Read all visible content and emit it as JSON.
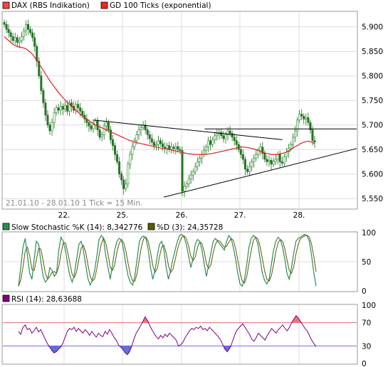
{
  "chart_data": [
    {
      "type": "candlestick",
      "legend": [
        {
          "name": "DAX (RBS Indikation)",
          "color": "#ff4040"
        },
        {
          "name": "GD 100 Ticks (exponential)",
          "color": "#ff2020"
        }
      ],
      "note": "21.01.10 - 28.01.10   1 Tick = 15 Min.",
      "x_tick_labels": [
        "22.",
        "25.",
        "26.",
        "27.",
        "28."
      ],
      "y_tick_labels": [
        "5.900",
        "5.850",
        "5.800",
        "5.750",
        "5.700",
        "5.650",
        "5.600",
        "5.550"
      ],
      "ylim": [
        5530,
        5930
      ],
      "grid": true,
      "series": {
        "price_close": [
          5905,
          5895,
          5888,
          5880,
          5872,
          5878,
          5868,
          5872,
          5880,
          5892,
          5905,
          5895,
          5888,
          5878,
          5860,
          5830,
          5800,
          5770,
          5745,
          5720,
          5700,
          5688,
          5705,
          5725,
          5735,
          5730,
          5738,
          5732,
          5740,
          5728,
          5745,
          5738,
          5730,
          5742,
          5735,
          5728,
          5720,
          5712,
          5705,
          5698,
          5692,
          5700,
          5708,
          5690,
          5675,
          5680,
          5698,
          5705,
          5690,
          5670,
          5658,
          5640,
          5625,
          5600,
          5588,
          5570,
          5580,
          5620,
          5640,
          5655,
          5668,
          5680,
          5690,
          5695,
          5700,
          5690,
          5680,
          5672,
          5665,
          5658,
          5660,
          5668,
          5662,
          5655,
          5652,
          5658,
          5650,
          5655,
          5652,
          5656,
          5650,
          5648,
          5565,
          5575,
          5580,
          5590,
          5598,
          5605,
          5615,
          5625,
          5632,
          5640,
          5648,
          5655,
          5668,
          5660,
          5670,
          5678,
          5682,
          5685,
          5678,
          5672,
          5680,
          5688,
          5683,
          5675,
          5668,
          5660,
          5650,
          5640,
          5630,
          5610,
          5605,
          5615,
          5625,
          5632,
          5640,
          5648,
          5655,
          5642,
          5630,
          5625,
          5628,
          5620,
          5626,
          5630,
          5640,
          5625,
          5622,
          5635,
          5645,
          5652,
          5660,
          5675,
          5688,
          5710,
          5722,
          5718,
          5712,
          5715,
          5705,
          5690,
          5668,
          5665
        ],
        "gd100": [
          5880,
          5876,
          5872,
          5868,
          5864,
          5862,
          5860,
          5859,
          5858,
          5857,
          5855,
          5852,
          5848,
          5844,
          5838,
          5832,
          5825,
          5818,
          5811,
          5804,
          5797,
          5790,
          5784,
          5778,
          5772,
          5766,
          5761,
          5756,
          5751,
          5746,
          5742,
          5738,
          5734,
          5730,
          5726,
          5722,
          5718,
          5715,
          5712,
          5709,
          5706,
          5703,
          5700,
          5698,
          5696,
          5694,
          5692,
          5690,
          5688,
          5686,
          5684,
          5682,
          5680,
          5678,
          5676,
          5674,
          5672,
          5670,
          5668,
          5667,
          5665,
          5664,
          5663,
          5662,
          5661,
          5660,
          5659,
          5658,
          5657,
          5656,
          5655,
          5654,
          5653,
          5652,
          5652,
          5651,
          5650,
          5649,
          5648,
          5647,
          5646,
          5645,
          5644,
          5643,
          5642,
          5641,
          5641,
          5640,
          5640,
          5640,
          5640,
          5640,
          5640,
          5640,
          5641,
          5641,
          5642,
          5643,
          5644,
          5645,
          5646,
          5647,
          5648,
          5649,
          5650,
          5651,
          5652,
          5653,
          5654,
          5655,
          5655,
          5655,
          5654,
          5653,
          5652,
          5651,
          5650,
          5648,
          5646,
          5644,
          5643,
          5642,
          5641,
          5640,
          5640,
          5640,
          5640,
          5641,
          5642,
          5643,
          5645,
          5647,
          5650,
          5653,
          5656,
          5658,
          5661,
          5663,
          5665,
          5666,
          5667,
          5666,
          5664,
          5662
        ],
        "trendlines": [
          {
            "from": [
              0.255,
              5710
            ],
            "to": [
              0.79,
              5670
            ]
          },
          {
            "from": [
              0.455,
              5553
            ],
            "to": [
              1.0,
              5652
            ]
          },
          {
            "from": [
              0.57,
              5692
            ],
            "to": [
              1.0,
              5692
            ]
          }
        ]
      }
    },
    {
      "type": "line",
      "legend": [
        {
          "name": "Slow Stochastic %K (14): 8,342776",
          "color": "#2e8b57"
        },
        {
          "name": "%D (3): 24,35728",
          "color": "#5a5a00"
        }
      ],
      "y_tick_labels": [
        "100",
        "50",
        "0"
      ],
      "ylim": [
        0,
        100
      ],
      "grid": true,
      "values_k": [
        8,
        40,
        75,
        90,
        60,
        30,
        20,
        55,
        85,
        80,
        50,
        25,
        15,
        20,
        40,
        35,
        25,
        30,
        70,
        92,
        85,
        70,
        45,
        25,
        15,
        30,
        55,
        80,
        85,
        70,
        45,
        22,
        10,
        18,
        35,
        60,
        88,
        95,
        90,
        60,
        40,
        20,
        45,
        70,
        85,
        90,
        88,
        70,
        45,
        25,
        15,
        10,
        25,
        55,
        85,
        92,
        94,
        90,
        70,
        40,
        20,
        35,
        60,
        80,
        85,
        70,
        40,
        20,
        35,
        55,
        70,
        85,
        95,
        97,
        92,
        80,
        60,
        40,
        55,
        80,
        88,
        85,
        70,
        45,
        25,
        45,
        65,
        85,
        90,
        85,
        80,
        75,
        70,
        85,
        95,
        90,
        75,
        55,
        30,
        12,
        8,
        20,
        45,
        75,
        90,
        95,
        92,
        80,
        55,
        30,
        18,
        12,
        20,
        45,
        70,
        85,
        92,
        88,
        75,
        55,
        30,
        20,
        40,
        65,
        85,
        90,
        92,
        95,
        97,
        94,
        85,
        60,
        30,
        8
      ]
    },
    {
      "type": "area",
      "legend": [
        {
          "name": "RSI (14): 28,63688",
          "color": "#800080"
        }
      ],
      "y_tick_labels": [
        "100",
        "70",
        "30",
        "0"
      ],
      "ylim": [
        0,
        100
      ],
      "overbought": 70,
      "oversold": 30,
      "values": [
        55,
        50,
        62,
        66,
        58,
        60,
        52,
        56,
        62,
        54,
        58,
        50,
        42,
        34,
        28,
        22,
        18,
        20,
        24,
        28,
        35,
        45,
        55,
        60,
        58,
        62,
        55,
        60,
        56,
        52,
        58,
        54,
        48,
        55,
        50,
        45,
        52,
        48,
        46,
        55,
        50,
        58,
        52,
        45,
        40,
        32,
        28,
        24,
        18,
        15,
        20,
        30,
        42,
        52,
        58,
        65,
        72,
        80,
        74,
        66,
        58,
        52,
        46,
        42,
        48,
        44,
        50,
        46,
        52,
        48,
        44,
        40,
        30,
        32,
        36,
        44,
        50,
        56,
        60,
        58,
        62,
        60,
        64,
        58,
        60,
        56,
        62,
        58,
        54,
        50,
        46,
        40,
        32,
        24,
        20,
        25,
        34,
        45,
        55,
        60,
        64,
        68,
        62,
        56,
        50,
        42,
        38,
        44,
        52,
        48,
        44,
        40,
        48,
        54,
        60,
        56,
        52,
        58,
        62,
        66,
        60,
        56,
        62,
        70,
        76,
        82,
        78,
        72,
        66,
        60,
        56,
        48,
        40,
        34,
        29
      ]
    }
  ]
}
